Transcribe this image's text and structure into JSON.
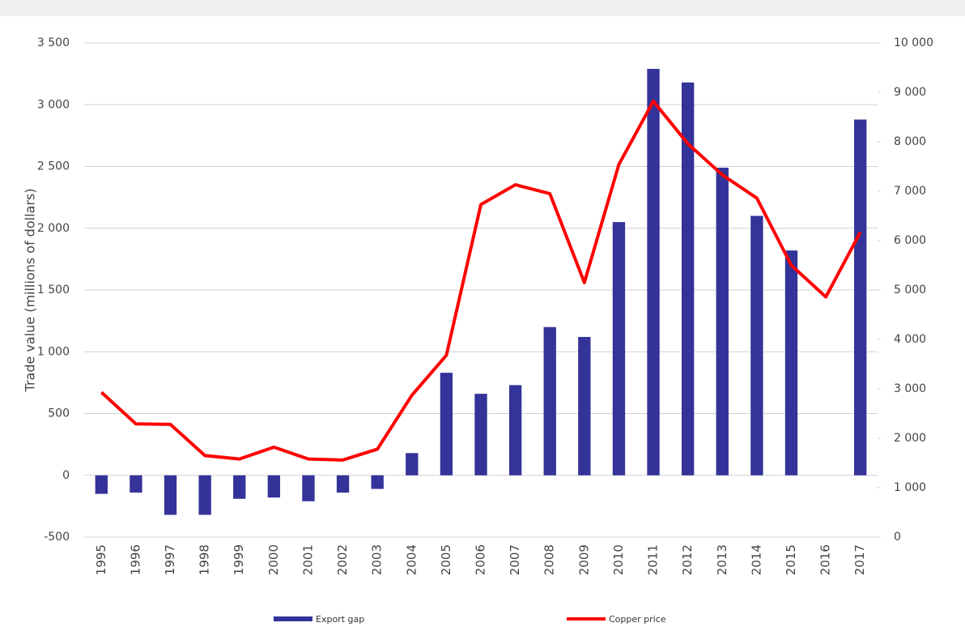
{
  "chart_data": {
    "type": "bar-line",
    "y_label": "Trade value  (millions of dollars)",
    "categories": [
      "1995",
      "1996",
      "1997",
      "1998",
      "1999",
      "2000",
      "2001",
      "2002",
      "2003",
      "2004",
      "2005",
      "2006",
      "2007",
      "2008",
      "2009",
      "2010",
      "2011",
      "2012",
      "2013",
      "2014",
      "2015",
      "2016",
      "2017"
    ],
    "series": [
      {
        "name": "Export gap",
        "color": "#333399",
        "type": "bar",
        "axis": "y",
        "values": [
          -150,
          -140,
          -320,
          -320,
          -190,
          -180,
          -210,
          -140,
          -110,
          180,
          830,
          660,
          730,
          1200,
          1120,
          2050,
          3290,
          3180,
          2490,
          2100,
          1820,
          null,
          2880
        ]
      },
      {
        "name": "Copper price",
        "color": "#ff0000",
        "type": "line",
        "axis": "y2",
        "values": [
          2930,
          2290,
          2280,
          1650,
          1580,
          1820,
          1580,
          1560,
          1780,
          2870,
          3680,
          6730,
          7130,
          6950,
          5150,
          7540,
          8820,
          7960,
          7330,
          6860,
          5500,
          4860,
          6170
        ]
      }
    ],
    "ylim": [
      -500,
      3500
    ],
    "yticks": [
      -500,
      0,
      500,
      {
        "value": 1000,
        "label": "1 000"
      },
      {
        "value": 1500,
        "label": "1 500"
      },
      {
        "value": 2000,
        "label": "2 000"
      },
      {
        "value": 2500,
        "label": "2 500"
      },
      {
        "value": 3000,
        "label": "3 000"
      },
      {
        "value": 3500,
        "label": "3 500"
      }
    ],
    "y2lim": [
      0,
      10000
    ],
    "y2ticks": [
      0,
      {
        "value": 1000,
        "label": "1 000"
      },
      {
        "value": 2000,
        "label": "2 000"
      },
      {
        "value": 3000,
        "label": "3 000"
      },
      {
        "value": 4000,
        "label": "4 000"
      },
      {
        "value": 5000,
        "label": "5 000"
      },
      {
        "value": 6000,
        "label": "6 000"
      },
      {
        "value": 7000,
        "label": "7 000"
      },
      {
        "value": 8000,
        "label": "8 000"
      },
      {
        "value": 9000,
        "label": "9 000"
      },
      {
        "value": 10000,
        "label": "10 000"
      }
    ],
    "grid": true
  }
}
